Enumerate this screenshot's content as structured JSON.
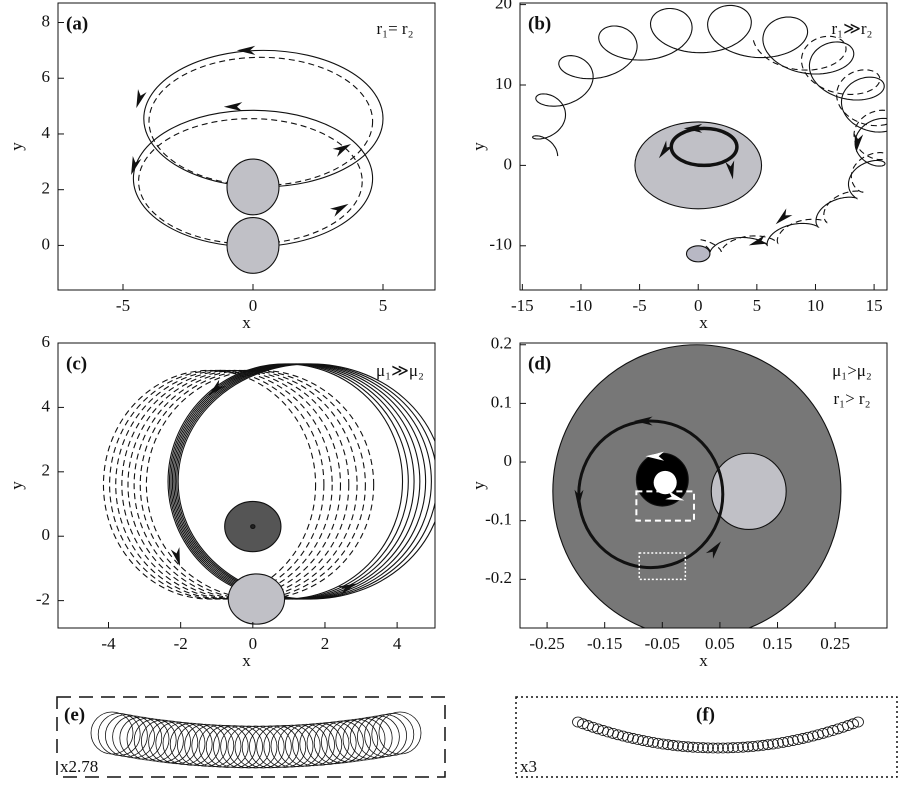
{
  "chart_data": [
    {
      "type": "line",
      "title": "(a)",
      "annotation": [
        "r₁= r₂"
      ],
      "xlabel": "x",
      "ylabel": "y",
      "xlim": [
        -7.5,
        7
      ],
      "ylim": [
        -1.6,
        8.7
      ],
      "xticks": [
        -5,
        0,
        5
      ],
      "yticks": [
        0,
        2,
        4,
        6,
        8
      ]
    },
    {
      "type": "line",
      "title": "(b)",
      "annotation": [
        "r₁≫r₂"
      ],
      "xlabel": "x",
      "ylabel": "y",
      "xlim": [
        -15.2,
        16.1
      ],
      "ylim": [
        -15.5,
        20.2
      ],
      "xticks": [
        -15,
        -10,
        -5,
        0,
        5,
        10,
        15
      ],
      "yticks": [
        -10,
        0,
        10,
        20
      ]
    },
    {
      "type": "line",
      "title": "(c)",
      "annotation": [
        "μ₁≫μ₂"
      ],
      "xlabel": "x",
      "ylabel": "y",
      "xlim": [
        -5.4,
        5.05
      ],
      "ylim": [
        -2.85,
        6
      ],
      "xticks": [
        -4,
        -2,
        0,
        2,
        4
      ],
      "yticks": [
        -2,
        0,
        2,
        4,
        6
      ]
    },
    {
      "type": "line",
      "title": "(d)",
      "annotation": [
        "μ₁>μ₂",
        "r₁> r₂"
      ],
      "xlabel": "x",
      "ylabel": "y",
      "xlim": [
        -0.297,
        0.34
      ],
      "ylim": [
        -0.283,
        0.203
      ],
      "xticks": [
        -0.25,
        -0.15,
        -0.05,
        0.05,
        0.15,
        0.25
      ],
      "yticks": [
        -0.2,
        -0.1,
        0,
        0.1,
        0.2
      ]
    }
  ],
  "insets": [
    {
      "label": "(e)",
      "scale_label": "x2.78"
    },
    {
      "label": "(f)",
      "scale_label": "x3"
    }
  ]
}
